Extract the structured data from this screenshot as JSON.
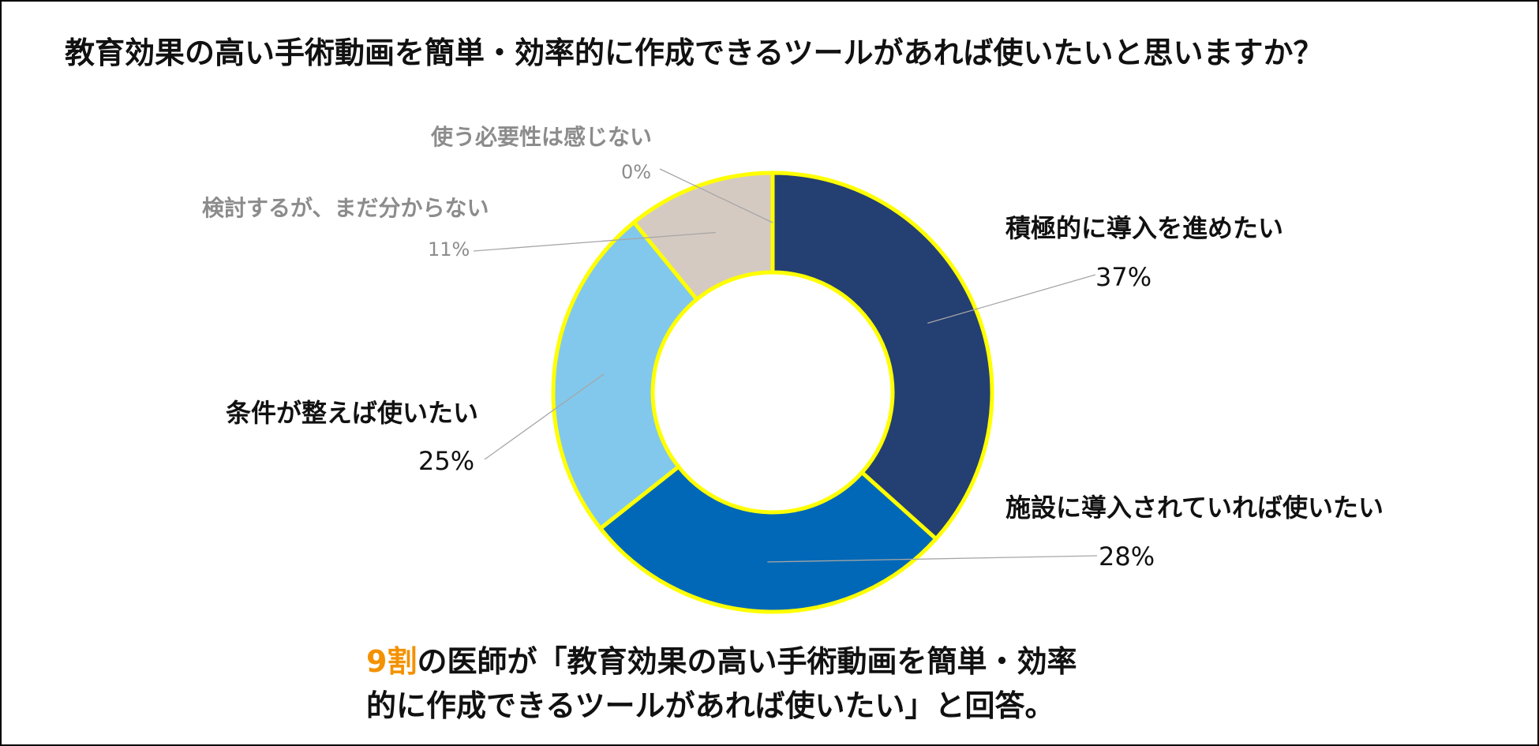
{
  "chart_data": {
    "type": "pie",
    "title": "教育効果の高い手術動画を簡単・効率的に作成できるツールがあれば使いたいと思いますか？",
    "donut": true,
    "slice_border_color": "#ffff00",
    "slices": [
      {
        "label": "積極的に導入を進めたい",
        "value": 37,
        "display": "37%",
        "color": "#243f72"
      },
      {
        "label": "施設に導入されていれば使いたい",
        "value": 28,
        "display": "28%",
        "color": "#0068b7"
      },
      {
        "label": "条件が整えば使いたい",
        "value": 25,
        "display": "25%",
        "color": "#82c8ec"
      },
      {
        "label": "検討するが、まだ分からない",
        "value": 11,
        "display": "11%",
        "color": "#d5cac2"
      },
      {
        "label": "使う必要性は感じない",
        "value": 0,
        "display": "0%",
        "color": "#bfbfbf"
      }
    ]
  },
  "caption": {
    "highlight": "9割",
    "highlight_color": "#f39200",
    "line1_rest": "の医師が「教育効果の高い手術動画を簡単・効率",
    "line2": "的に作成できるツールがあれば使いたい」と回答。"
  }
}
